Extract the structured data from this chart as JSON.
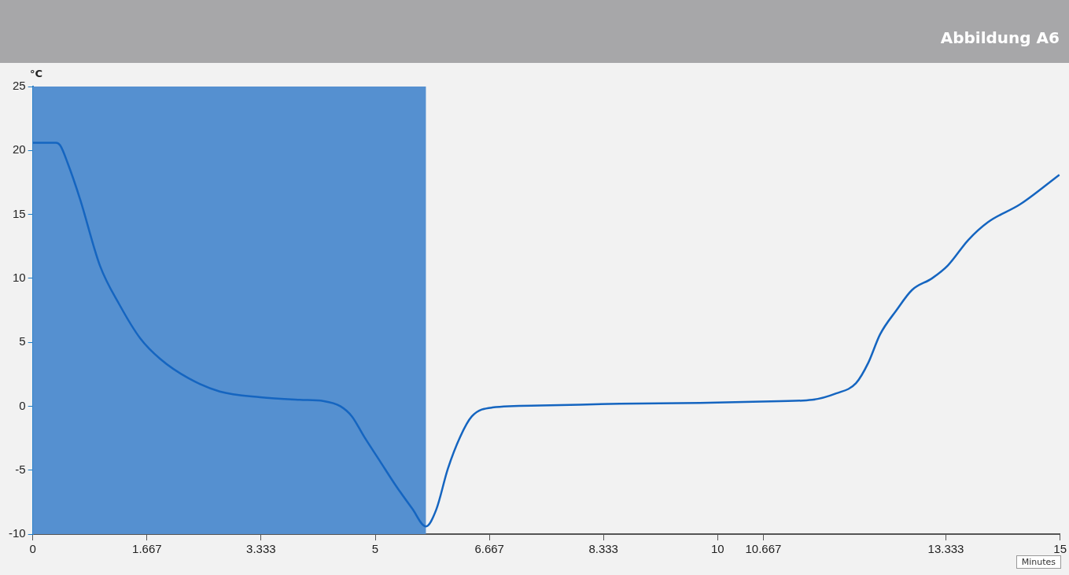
{
  "chart_data": {
    "type": "line",
    "title": "Abbildung A6",
    "ylabel": "°C",
    "xlabel": "Minutes",
    "x": [
      0,
      0.34,
      0.4,
      0.51,
      0.69,
      0.98,
      1.27,
      1.57,
      1.86,
      2.27,
      2.73,
      3.32,
      3.9,
      4.25,
      4.49,
      4.66,
      4.84,
      5.07,
      5.3,
      5.54,
      5.74,
      5.89,
      6.06,
      6.24,
      6.41,
      6.71,
      7.41,
      8.57,
      9.74,
      10.91,
      11.38,
      11.73,
      12.02,
      12.2,
      12.37,
      12.61,
      12.84,
      13.13,
      13.36,
      13.66,
      13.95,
      14.42,
      14.99
    ],
    "series": [
      {
        "color": "#1565c0",
        "values": [
          20.6,
          20.6,
          20.4,
          19,
          16.2,
          11,
          7.9,
          5.3,
          3.7,
          2.2,
          1.15,
          0.7,
          0.5,
          0.4,
          0,
          -0.8,
          -2.4,
          -4.3,
          -6.2,
          -8,
          -9.4,
          -8.1,
          -4.9,
          -2.4,
          -0.8,
          -0.1,
          0.05,
          0.2,
          0.25,
          0.4,
          0.5,
          1,
          1.8,
          3.4,
          5.6,
          7.5,
          9.1,
          10,
          11,
          13,
          14.4,
          15.8,
          18.1
        ]
      }
    ],
    "xlim": [
      0,
      15
    ],
    "xticks": [
      0,
      1.667,
      3.333,
      5,
      6.667,
      8.333,
      10,
      10.667,
      13.333,
      15
    ],
    "ylim": [
      -10,
      25
    ],
    "yticks": [
      -10,
      -5,
      0,
      5,
      10,
      15,
      20,
      25
    ],
    "bands": [
      {
        "axis": "x",
        "from": 0,
        "to": 5.74,
        "color": "#5590d0"
      }
    ],
    "grid": false,
    "legend": false,
    "marker": "none",
    "line_style": "solid"
  }
}
